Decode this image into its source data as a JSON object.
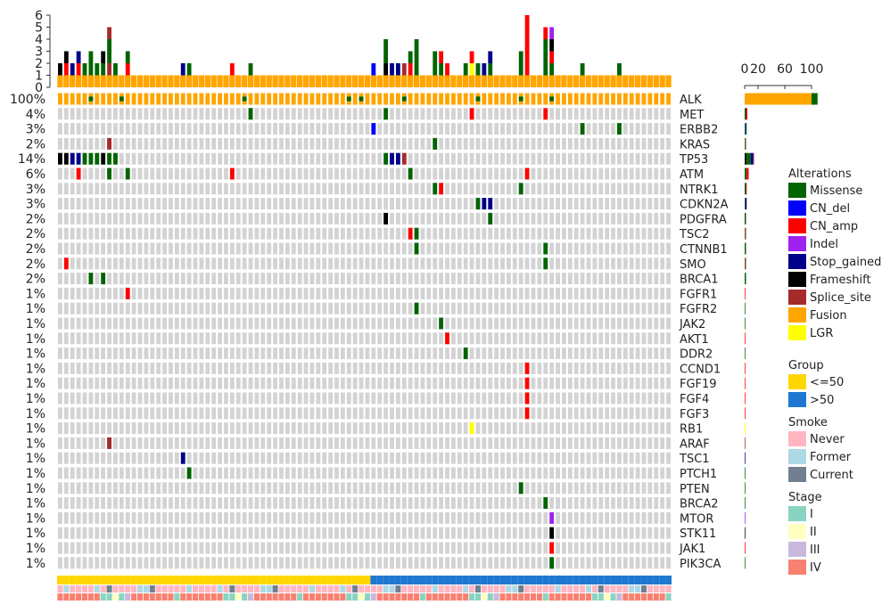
{
  "chart_data": {
    "type": "heatmap",
    "title": "",
    "n_samples": 100,
    "genes": [
      "ALK",
      "MET",
      "ERBB2",
      "KRAS",
      "TP53",
      "ATM",
      "NTRK1",
      "CDKN2A",
      "PDGFRA",
      "TSC2",
      "CTNNB1",
      "SMO",
      "BRCA1",
      "FGFR1",
      "FGFR2",
      "JAK2",
      "AKT1",
      "DDR2",
      "CCND1",
      "FGF19",
      "FGF4",
      "FGF3",
      "RB1",
      "ARAF",
      "TSC1",
      "PTCH1",
      "PTEN",
      "BRCA2",
      "MTOR",
      "STK11",
      "JAK1",
      "PIK3CA"
    ],
    "percentages": [
      "100%",
      "4%",
      "3%",
      "2%",
      "14%",
      "6%",
      "3%",
      "3%",
      "2%",
      "2%",
      "2%",
      "2%",
      "2%",
      "1%",
      "1%",
      "1%",
      "1%",
      "1%",
      "1%",
      "1%",
      "1%",
      "1%",
      "1%",
      "1%",
      "1%",
      "1%",
      "1%",
      "1%",
      "1%",
      "1%",
      "1%",
      "1%"
    ],
    "top_axis_ticks": [
      "0",
      "1",
      "2",
      "3",
      "4",
      "5",
      "6"
    ],
    "top_axis_max": 6,
    "right_axis_ticks": [
      "0",
      "20",
      "60",
      "100"
    ],
    "right_axis_values": [
      0,
      20,
      60,
      100
    ],
    "right_axis_max": 100,
    "alteration_types": [
      "Missense",
      "CN_del",
      "CN_amp",
      "Indel",
      "Stop_gained",
      "Frameshift",
      "Splice_site",
      "Fusion",
      "LGR"
    ],
    "alteration_colors": {
      "Missense": "#006400",
      "CN_del": "#0000FF",
      "CN_amp": "#FF0000",
      "Indel": "#A020F0",
      "Stop_gained": "#00008B",
      "Frameshift": "#000000",
      "Splice_site": "#A52A2A",
      "Fusion": "#FFA500",
      "LGR": "#FFFF00"
    },
    "mutations": [
      {
        "gene": "MET",
        "sample": 31,
        "type": "Missense"
      },
      {
        "gene": "MET",
        "sample": 53,
        "type": "Missense"
      },
      {
        "gene": "MET",
        "sample": 67,
        "type": "CN_amp"
      },
      {
        "gene": "MET",
        "sample": 79,
        "type": "CN_amp"
      },
      {
        "gene": "ERBB2",
        "sample": 51,
        "type": "CN_del"
      },
      {
        "gene": "ERBB2",
        "sample": 85,
        "type": "Missense"
      },
      {
        "gene": "ERBB2",
        "sample": 91,
        "type": "Missense"
      },
      {
        "gene": "KRAS",
        "sample": 8,
        "type": "Splice_site"
      },
      {
        "gene": "KRAS",
        "sample": 61,
        "type": "Missense"
      },
      {
        "gene": "TP53",
        "sample": 0,
        "type": "Frameshift"
      },
      {
        "gene": "TP53",
        "sample": 1,
        "type": "Frameshift"
      },
      {
        "gene": "TP53",
        "sample": 2,
        "type": "Stop_gained"
      },
      {
        "gene": "TP53",
        "sample": 3,
        "type": "Stop_gained"
      },
      {
        "gene": "TP53",
        "sample": 4,
        "type": "Missense"
      },
      {
        "gene": "TP53",
        "sample": 5,
        "type": "Missense"
      },
      {
        "gene": "TP53",
        "sample": 6,
        "type": "Missense"
      },
      {
        "gene": "TP53",
        "sample": 7,
        "type": "Frameshift"
      },
      {
        "gene": "TP53",
        "sample": 8,
        "type": "Missense"
      },
      {
        "gene": "TP53",
        "sample": 9,
        "type": "Missense"
      },
      {
        "gene": "TP53",
        "sample": 53,
        "type": "Missense"
      },
      {
        "gene": "TP53",
        "sample": 54,
        "type": "Stop_gained"
      },
      {
        "gene": "TP53",
        "sample": 55,
        "type": "Stop_gained"
      },
      {
        "gene": "TP53",
        "sample": 56,
        "type": "Splice_site"
      },
      {
        "gene": "ATM",
        "sample": 3,
        "type": "CN_amp"
      },
      {
        "gene": "ATM",
        "sample": 8,
        "type": "Missense"
      },
      {
        "gene": "ATM",
        "sample": 11,
        "type": "Missense"
      },
      {
        "gene": "ATM",
        "sample": 28,
        "type": "CN_amp"
      },
      {
        "gene": "ATM",
        "sample": 57,
        "type": "Missense"
      },
      {
        "gene": "ATM",
        "sample": 76,
        "type": "CN_amp"
      },
      {
        "gene": "NTRK1",
        "sample": 61,
        "type": "Missense"
      },
      {
        "gene": "NTRK1",
        "sample": 62,
        "type": "CN_amp"
      },
      {
        "gene": "NTRK1",
        "sample": 75,
        "type": "Missense"
      },
      {
        "gene": "CDKN2A",
        "sample": 68,
        "type": "Missense"
      },
      {
        "gene": "CDKN2A",
        "sample": 69,
        "type": "Stop_gained"
      },
      {
        "gene": "CDKN2A",
        "sample": 70,
        "type": "Stop_gained"
      },
      {
        "gene": "PDGFRA",
        "sample": 53,
        "type": "Frameshift"
      },
      {
        "gene": "PDGFRA",
        "sample": 70,
        "type": "Missense"
      },
      {
        "gene": "TSC2",
        "sample": 57,
        "type": "CN_amp"
      },
      {
        "gene": "TSC2",
        "sample": 58,
        "type": "Missense"
      },
      {
        "gene": "CTNNB1",
        "sample": 58,
        "type": "Missense"
      },
      {
        "gene": "CTNNB1",
        "sample": 79,
        "type": "Missense"
      },
      {
        "gene": "SMO",
        "sample": 1,
        "type": "CN_amp"
      },
      {
        "gene": "SMO",
        "sample": 79,
        "type": "Missense"
      },
      {
        "gene": "BRCA1",
        "sample": 5,
        "type": "Missense"
      },
      {
        "gene": "BRCA1",
        "sample": 7,
        "type": "Missense"
      },
      {
        "gene": "FGFR1",
        "sample": 11,
        "type": "CN_amp"
      },
      {
        "gene": "FGFR2",
        "sample": 58,
        "type": "Missense"
      },
      {
        "gene": "JAK2",
        "sample": 62,
        "type": "Missense"
      },
      {
        "gene": "AKT1",
        "sample": 63,
        "type": "CN_amp"
      },
      {
        "gene": "DDR2",
        "sample": 66,
        "type": "Missense"
      },
      {
        "gene": "CCND1",
        "sample": 76,
        "type": "CN_amp"
      },
      {
        "gene": "FGF19",
        "sample": 76,
        "type": "CN_amp"
      },
      {
        "gene": "FGF4",
        "sample": 76,
        "type": "CN_amp"
      },
      {
        "gene": "FGF3",
        "sample": 76,
        "type": "CN_amp"
      },
      {
        "gene": "RB1",
        "sample": 67,
        "type": "LGR"
      },
      {
        "gene": "ARAF",
        "sample": 8,
        "type": "Splice_site"
      },
      {
        "gene": "TSC1",
        "sample": 20,
        "type": "Stop_gained"
      },
      {
        "gene": "PTCH1",
        "sample": 21,
        "type": "Missense"
      },
      {
        "gene": "PTEN",
        "sample": 75,
        "type": "Missense"
      },
      {
        "gene": "BRCA2",
        "sample": 79,
        "type": "Missense"
      },
      {
        "gene": "MTOR",
        "sample": 80,
        "type": "Indel"
      },
      {
        "gene": "STK11",
        "sample": 80,
        "type": "Frameshift"
      },
      {
        "gene": "JAK1",
        "sample": 80,
        "type": "CN_amp"
      },
      {
        "gene": "PIK3CA",
        "sample": 80,
        "type": "Missense"
      }
    ],
    "alk_variant_samples": [
      5,
      10,
      30,
      47,
      49,
      56,
      68,
      75,
      80
    ],
    "right_bars": [
      {
        "gene": "ALK",
        "segments": [
          {
            "type": "Fusion",
            "value": 100
          },
          {
            "type": "Missense",
            "value": 9
          }
        ]
      },
      {
        "gene": "MET",
        "segments": [
          {
            "type": "Missense",
            "value": 2
          },
          {
            "type": "CN_amp",
            "value": 2
          }
        ]
      },
      {
        "gene": "ERBB2",
        "segments": [
          {
            "type": "CN_del",
            "value": 1
          },
          {
            "type": "Missense",
            "value": 2
          }
        ]
      },
      {
        "gene": "KRAS",
        "segments": [
          {
            "type": "Splice_site",
            "value": 1
          },
          {
            "type": "Missense",
            "value": 1
          }
        ]
      },
      {
        "gene": "TP53",
        "segments": [
          {
            "type": "Frameshift",
            "value": 3
          },
          {
            "type": "Missense",
            "value": 6
          },
          {
            "type": "Stop_gained",
            "value": 4
          },
          {
            "type": "Splice_site",
            "value": 1
          }
        ]
      },
      {
        "gene": "ATM",
        "segments": [
          {
            "type": "Missense",
            "value": 3
          },
          {
            "type": "CN_amp",
            "value": 3
          }
        ]
      },
      {
        "gene": "NTRK1",
        "segments": [
          {
            "type": "Missense",
            "value": 2
          },
          {
            "type": "CN_amp",
            "value": 1
          }
        ]
      },
      {
        "gene": "CDKN2A",
        "segments": [
          {
            "type": "Missense",
            "value": 1
          },
          {
            "type": "Stop_gained",
            "value": 2
          }
        ]
      },
      {
        "gene": "PDGFRA",
        "segments": [
          {
            "type": "Frameshift",
            "value": 1
          },
          {
            "type": "Missense",
            "value": 1
          }
        ]
      },
      {
        "gene": "TSC2",
        "segments": [
          {
            "type": "CN_amp",
            "value": 1
          },
          {
            "type": "Missense",
            "value": 1
          }
        ]
      },
      {
        "gene": "CTNNB1",
        "segments": [
          {
            "type": "Missense",
            "value": 2
          }
        ]
      },
      {
        "gene": "SMO",
        "segments": [
          {
            "type": "CN_amp",
            "value": 1
          },
          {
            "type": "Missense",
            "value": 1
          }
        ]
      },
      {
        "gene": "BRCA1",
        "segments": [
          {
            "type": "Missense",
            "value": 2
          }
        ]
      },
      {
        "gene": "FGFR1",
        "segments": [
          {
            "type": "CN_amp",
            "value": 1
          }
        ]
      },
      {
        "gene": "FGFR2",
        "segments": [
          {
            "type": "Missense",
            "value": 1
          }
        ]
      },
      {
        "gene": "JAK2",
        "segments": [
          {
            "type": "Missense",
            "value": 1
          }
        ]
      },
      {
        "gene": "AKT1",
        "segments": [
          {
            "type": "CN_amp",
            "value": 1
          }
        ]
      },
      {
        "gene": "DDR2",
        "segments": [
          {
            "type": "Missense",
            "value": 1
          }
        ]
      },
      {
        "gene": "CCND1",
        "segments": [
          {
            "type": "CN_amp",
            "value": 1
          }
        ]
      },
      {
        "gene": "FGF19",
        "segments": [
          {
            "type": "CN_amp",
            "value": 1
          }
        ]
      },
      {
        "gene": "FGF4",
        "segments": [
          {
            "type": "CN_amp",
            "value": 1
          }
        ]
      },
      {
        "gene": "FGF3",
        "segments": [
          {
            "type": "CN_amp",
            "value": 1
          }
        ]
      },
      {
        "gene": "RB1",
        "segments": [
          {
            "type": "LGR",
            "value": 1
          }
        ]
      },
      {
        "gene": "ARAF",
        "segments": [
          {
            "type": "Splice_site",
            "value": 1
          }
        ]
      },
      {
        "gene": "TSC1",
        "segments": [
          {
            "type": "Stop_gained",
            "value": 1
          }
        ]
      },
      {
        "gene": "PTCH1",
        "segments": [
          {
            "type": "Missense",
            "value": 1
          }
        ]
      },
      {
        "gene": "PTEN",
        "segments": [
          {
            "type": "Missense",
            "value": 1
          }
        ]
      },
      {
        "gene": "BRCA2",
        "segments": [
          {
            "type": "Missense",
            "value": 1
          }
        ]
      },
      {
        "gene": "MTOR",
        "segments": [
          {
            "type": "Indel",
            "value": 1
          }
        ]
      },
      {
        "gene": "STK11",
        "segments": [
          {
            "type": "Frameshift",
            "value": 1
          }
        ]
      },
      {
        "gene": "JAK1",
        "segments": [
          {
            "type": "CN_amp",
            "value": 1
          }
        ]
      },
      {
        "gene": "PIK3CA",
        "segments": [
          {
            "type": "Missense",
            "value": 1
          }
        ]
      }
    ],
    "group_split_sample": 51,
    "groups": [
      "<=50",
      ">50"
    ],
    "group_colors": {
      "<=50": "#FFD700",
      ">50": "#1E78D2"
    },
    "smoke_colors": {
      "Never": "#FFB6C1",
      "Former": "#ADD8E6",
      "Current": "#708090"
    },
    "stage_colors": {
      "I": "#88D4C0",
      "II": "#FFFFC0",
      "III": "#C8B8DC",
      "IV": "#F88070"
    },
    "legend": {
      "alterations_title": "Alterations",
      "group_title": "Group",
      "group_items": [
        "<=50",
        ">50"
      ],
      "smoke_title": "Smoke",
      "smoke_items": [
        "Never",
        "Former",
        "Current"
      ],
      "stage_title": "Stage",
      "stage_items": [
        "I",
        "II",
        "III",
        "IV"
      ]
    }
  }
}
